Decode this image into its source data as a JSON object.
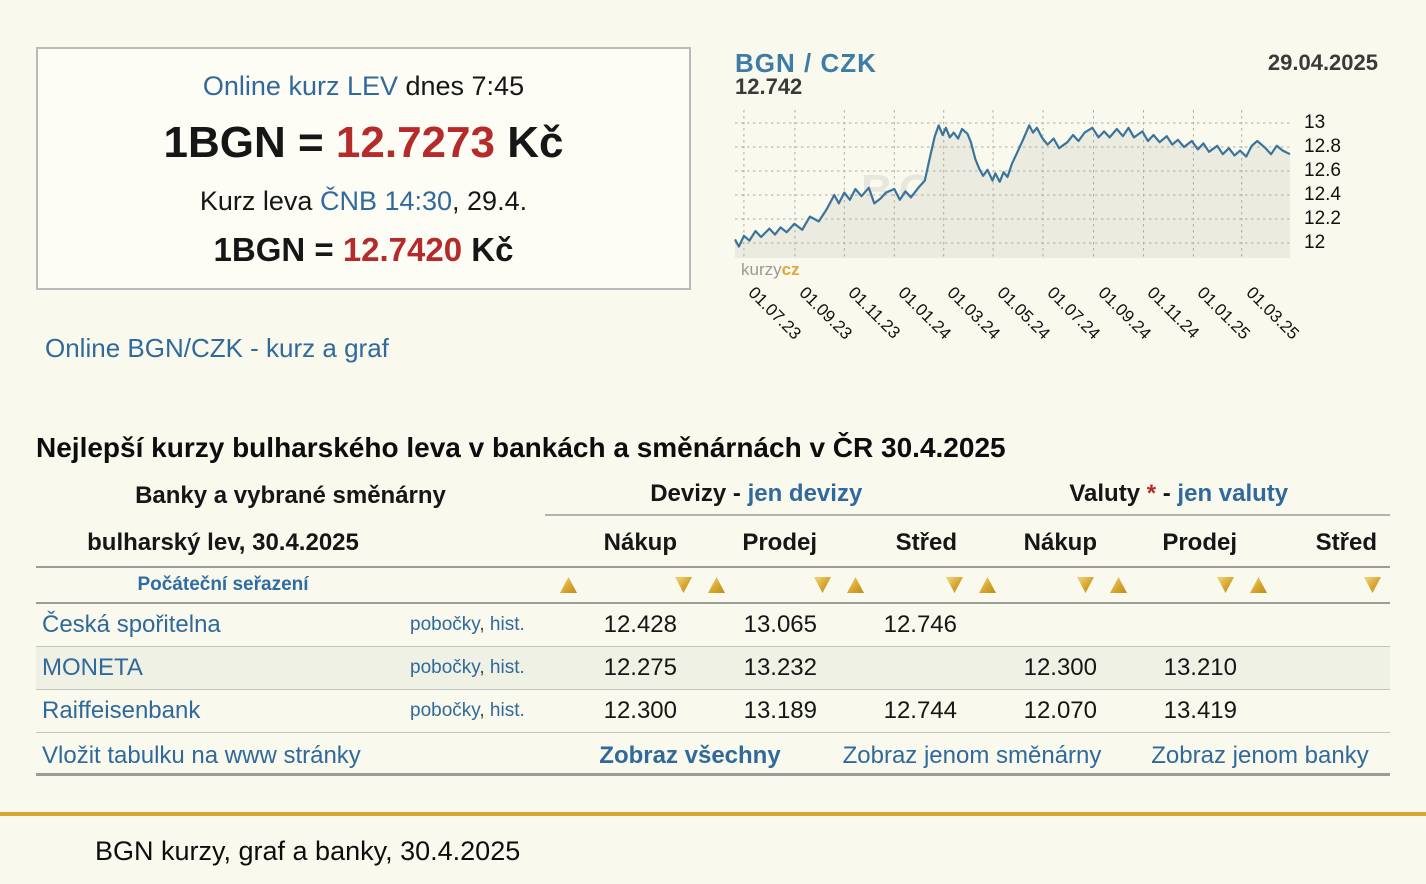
{
  "colors": {
    "accent_gold": "#d7a62f",
    "rate_red": "#b52a2a",
    "link_blue": "#30699b",
    "chart_line": "#3a739c",
    "alt_row": "#eff1e4"
  },
  "icons": {
    "sort_asc": "triangle-up",
    "sort_desc": "triangle-down"
  },
  "quote_box": {
    "title_link": "Online kurz LEV",
    "title_rest": " dnes 7:45",
    "rate_prefix": "1BGN = ",
    "rate_value": "12.7273",
    "rate_suffix": " Kč",
    "cnb_prefix": "Kurz leva ",
    "cnb_link": "ČNB 14:30",
    "cnb_suffix": ", 29.4.",
    "rate2_prefix": "1BGN = ",
    "rate2_value": "12.7420",
    "rate2_suffix": " Kč"
  },
  "graph_link": "Online BGN/CZK - kurz a graf",
  "chart_data": {
    "type": "line",
    "title": "BGN / CZK",
    "current_value": "12.742",
    "date": "29.04.2025",
    "watermark": "BGN / CZK",
    "brand_gray": "kurzy",
    "brand_orange": "cz",
    "grid": true,
    "legend": "none",
    "ylim": [
      11.875,
      13.108
    ],
    "y_ticks": [
      13,
      12.8,
      12.6,
      12.4,
      12.2,
      12
    ],
    "y_tick_labels": [
      "13",
      "12.8",
      "12.6",
      "12.4",
      "12.2",
      "12"
    ],
    "x_tick_t": [
      0.016,
      0.108,
      0.197,
      0.287,
      0.376,
      0.465,
      0.555,
      0.646,
      0.736,
      0.826,
      0.913
    ],
    "x_tick_labels": [
      "01.07.23",
      "01.09.23",
      "01.11.23",
      "01.01.24",
      "01.03.24",
      "01.05.24",
      "01.07.24",
      "01.09.24",
      "01.11.24",
      "01.01.25",
      "01.03.25"
    ],
    "series": [
      {
        "name": "BGN/CZK",
        "points": [
          [
            0.0,
            12.03
          ],
          [
            0.007,
            11.97
          ],
          [
            0.016,
            12.06
          ],
          [
            0.026,
            12.02
          ],
          [
            0.037,
            12.1
          ],
          [
            0.047,
            12.05
          ],
          [
            0.062,
            12.12
          ],
          [
            0.072,
            12.07
          ],
          [
            0.082,
            12.13
          ],
          [
            0.093,
            12.09
          ],
          [
            0.107,
            12.16
          ],
          [
            0.121,
            12.11
          ],
          [
            0.135,
            12.22
          ],
          [
            0.151,
            12.18
          ],
          [
            0.165,
            12.28
          ],
          [
            0.179,
            12.4
          ],
          [
            0.187,
            12.33
          ],
          [
            0.197,
            12.42
          ],
          [
            0.207,
            12.36
          ],
          [
            0.217,
            12.45
          ],
          [
            0.228,
            12.39
          ],
          [
            0.241,
            12.46
          ],
          [
            0.251,
            12.33
          ],
          [
            0.262,
            12.37
          ],
          [
            0.272,
            12.42
          ],
          [
            0.287,
            12.45
          ],
          [
            0.297,
            12.36
          ],
          [
            0.307,
            12.43
          ],
          [
            0.317,
            12.38
          ],
          [
            0.332,
            12.47
          ],
          [
            0.342,
            12.52
          ],
          [
            0.353,
            12.75
          ],
          [
            0.36,
            12.89
          ],
          [
            0.367,
            12.98
          ],
          [
            0.374,
            12.9
          ],
          [
            0.38,
            12.96
          ],
          [
            0.387,
            12.88
          ],
          [
            0.394,
            12.92
          ],
          [
            0.402,
            12.87
          ],
          [
            0.409,
            12.95
          ],
          [
            0.419,
            12.91
          ],
          [
            0.425,
            12.84
          ],
          [
            0.433,
            12.7
          ],
          [
            0.44,
            12.62
          ],
          [
            0.447,
            12.56
          ],
          [
            0.455,
            12.61
          ],
          [
            0.464,
            12.52
          ],
          [
            0.469,
            12.58
          ],
          [
            0.477,
            12.51
          ],
          [
            0.484,
            12.59
          ],
          [
            0.491,
            12.55
          ],
          [
            0.499,
            12.66
          ],
          [
            0.509,
            12.76
          ],
          [
            0.519,
            12.86
          ],
          [
            0.53,
            12.98
          ],
          [
            0.537,
            12.92
          ],
          [
            0.544,
            12.96
          ],
          [
            0.553,
            12.88
          ],
          [
            0.563,
            12.82
          ],
          [
            0.574,
            12.87
          ],
          [
            0.584,
            12.79
          ],
          [
            0.599,
            12.84
          ],
          [
            0.609,
            12.9
          ],
          [
            0.619,
            12.85
          ],
          [
            0.63,
            12.92
          ],
          [
            0.644,
            12.96
          ],
          [
            0.655,
            12.88
          ],
          [
            0.665,
            12.93
          ],
          [
            0.675,
            12.88
          ],
          [
            0.688,
            12.95
          ],
          [
            0.699,
            12.89
          ],
          [
            0.709,
            12.96
          ],
          [
            0.719,
            12.88
          ],
          [
            0.734,
            12.93
          ],
          [
            0.744,
            12.85
          ],
          [
            0.754,
            12.9
          ],
          [
            0.765,
            12.84
          ],
          [
            0.778,
            12.89
          ],
          [
            0.788,
            12.82
          ],
          [
            0.798,
            12.86
          ],
          [
            0.809,
            12.8
          ],
          [
            0.823,
            12.85
          ],
          [
            0.834,
            12.78
          ],
          [
            0.844,
            12.83
          ],
          [
            0.854,
            12.76
          ],
          [
            0.869,
            12.81
          ],
          [
            0.879,
            12.74
          ],
          [
            0.89,
            12.79
          ],
          [
            0.9,
            12.73
          ],
          [
            0.91,
            12.77
          ],
          [
            0.921,
            12.72
          ],
          [
            0.931,
            12.81
          ],
          [
            0.941,
            12.85
          ],
          [
            0.956,
            12.79
          ],
          [
            0.966,
            12.74
          ],
          [
            0.976,
            12.81
          ],
          [
            0.987,
            12.77
          ],
          [
            1.0,
            12.74
          ]
        ]
      }
    ]
  },
  "table": {
    "title": "Nejlepší kurzy bulharského leva v bankách a směnárnách v ČR 30.4.2025",
    "left_header_line1": "Banky a vybrané směnárny",
    "left_header_line2": "bulharský lev, 30.4.2025",
    "group1_label": "Devizy",
    "group1_sep": " - ",
    "group1_link": "jen devizy",
    "group2_label": "Valuty",
    "group2_star": " * ",
    "group2_sep": "- ",
    "group2_link": "jen valuty",
    "columns": [
      "Nákup",
      "Prodej",
      "Střed",
      "Nákup",
      "Prodej",
      "Střed"
    ],
    "sort_label": "Počáteční seřazení",
    "links_sep": ", ",
    "rows": [
      {
        "name": "Česká spořitelna",
        "link1": "pobočky",
        "link2": "hist.",
        "values": [
          "12.428",
          "13.065",
          "12.746",
          "",
          "",
          ""
        ]
      },
      {
        "name": "MONETA",
        "link1": "pobočky",
        "link2": "hist.",
        "values": [
          "12.275",
          "13.232",
          "",
          "12.300",
          "13.210",
          ""
        ]
      },
      {
        "name": "Raiffeisenbank",
        "link1": "pobočky",
        "link2": "hist.",
        "values": [
          "12.300",
          "13.189",
          "12.744",
          "12.070",
          "13.419",
          ""
        ]
      }
    ],
    "footer_links": {
      "embed": "Vložit tabulku na www stránky",
      "all": "Zobraz všechny",
      "exchanges": "Zobraz jenom směnárny",
      "banks": "Zobraz jenom banky"
    }
  },
  "footer": {
    "text": "BGN kurzy, graf a banky, 30.4.2025"
  }
}
